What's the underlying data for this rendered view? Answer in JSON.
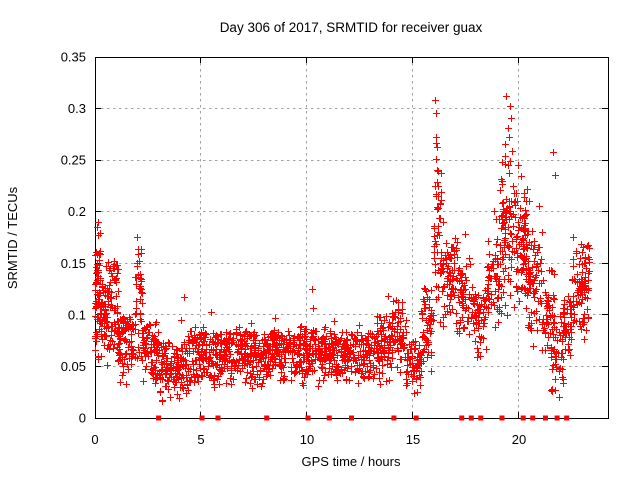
{
  "figure": {
    "background": "#ffffff",
    "border_color": "#000000",
    "text_color": "#000000",
    "grid_color": "#a0a0a0"
  },
  "chart_data": {
    "type": "scatter",
    "title": "Day 306 of 2017, SRMTID for receiver guax",
    "xlabel": "GPS time / hours",
    "ylabel": "SRMTID / TECUs",
    "xlim": [
      0,
      24.2
    ],
    "ylim": [
      0,
      0.35
    ],
    "xtick_values": [
      0,
      5,
      10,
      15,
      20
    ],
    "xtick_labels": [
      "0",
      "5",
      "10",
      "15",
      "20"
    ],
    "ytick_values": [
      0,
      0.05,
      0.1,
      0.15,
      0.2,
      0.25,
      0.3,
      0.35
    ],
    "ytick_labels": [
      "0",
      "0.05",
      "0.1",
      "0.15",
      "0.2",
      "0.25",
      "0.3",
      "0.35"
    ],
    "grid": {
      "on": true,
      "style": "dashed"
    },
    "legend": "none",
    "marker": {
      "shape": "plus",
      "color": "#ff0000",
      "size": 7
    },
    "seed": 1234,
    "cluster_fields": [
      "x0",
      "x1",
      "y0",
      "y1",
      "n",
      "bias"
    ],
    "clusters": [
      [
        0.0,
        0.25,
        0.05,
        0.19,
        55,
        1.0
      ],
      [
        0.25,
        0.6,
        0.04,
        0.15,
        55,
        1.2
      ],
      [
        0.6,
        1.1,
        0.04,
        0.155,
        60,
        1.3
      ],
      [
        1.1,
        1.9,
        0.03,
        0.1,
        80,
        1.3
      ],
      [
        1.9,
        2.25,
        0.035,
        0.17,
        40,
        1.3
      ],
      [
        2.25,
        3.0,
        0.025,
        0.095,
        80,
        1.3
      ],
      [
        3.0,
        4.4,
        0.013,
        0.075,
        130,
        1.3
      ],
      [
        4.4,
        5.3,
        0.025,
        0.09,
        85,
        1.3
      ],
      [
        5.3,
        6.2,
        0.022,
        0.085,
        85,
        1.3
      ],
      [
        6.2,
        7.2,
        0.028,
        0.09,
        95,
        1.3
      ],
      [
        7.2,
        8.2,
        0.025,
        0.085,
        95,
        1.3
      ],
      [
        8.2,
        9.2,
        0.028,
        0.09,
        95,
        1.3
      ],
      [
        9.2,
        10.2,
        0.028,
        0.09,
        95,
        1.3
      ],
      [
        10.2,
        11.2,
        0.025,
        0.09,
        95,
        1.3
      ],
      [
        11.2,
        12.2,
        0.025,
        0.085,
        90,
        1.3
      ],
      [
        12.2,
        13.2,
        0.028,
        0.085,
        90,
        1.3
      ],
      [
        13.2,
        14.0,
        0.03,
        0.1,
        75,
        1.3
      ],
      [
        14.0,
        14.7,
        0.035,
        0.115,
        60,
        1.3
      ],
      [
        14.7,
        15.4,
        0.018,
        0.08,
        60,
        1.2
      ],
      [
        15.4,
        16.0,
        0.04,
        0.135,
        55,
        1.2
      ],
      [
        16.0,
        16.35,
        0.08,
        0.285,
        42,
        1.0
      ],
      [
        16.35,
        17.1,
        0.08,
        0.18,
        70,
        1.2
      ],
      [
        17.1,
        17.7,
        0.065,
        0.16,
        55,
        1.2
      ],
      [
        17.7,
        18.5,
        0.05,
        0.135,
        60,
        1.2
      ],
      [
        18.5,
        19.1,
        0.07,
        0.18,
        55,
        1.1
      ],
      [
        19.1,
        19.8,
        0.09,
        0.27,
        85,
        1.15
      ],
      [
        19.8,
        20.4,
        0.09,
        0.24,
        80,
        1.2
      ],
      [
        20.4,
        21.1,
        0.06,
        0.185,
        70,
        1.25
      ],
      [
        21.1,
        21.7,
        0.04,
        0.145,
        50,
        1.2
      ],
      [
        21.5,
        22.1,
        0.012,
        0.1,
        45,
        1.1
      ],
      [
        22.1,
        22.5,
        0.05,
        0.12,
        40,
        1.2
      ],
      [
        22.5,
        23.35,
        0.06,
        0.175,
        80,
        1.25
      ]
    ],
    "outliers": [
      [
        0.1,
        0.185
      ],
      [
        0.15,
        0.19
      ],
      [
        0.9,
        0.152
      ],
      [
        1.0,
        0.148
      ],
      [
        2.0,
        0.175
      ],
      [
        2.05,
        0.163
      ],
      [
        2.1,
        0.152
      ],
      [
        4.2,
        0.117
      ],
      [
        4.1,
        0.095
      ],
      [
        5.5,
        0.102
      ],
      [
        7.4,
        0.092
      ],
      [
        8.5,
        0.096
      ],
      [
        10.25,
        0.125
      ],
      [
        10.3,
        0.106
      ],
      [
        11.3,
        0.094
      ],
      [
        12.5,
        0.09
      ],
      [
        13.85,
        0.118
      ],
      [
        14.3,
        0.112
      ],
      [
        16.08,
        0.308
      ],
      [
        16.12,
        0.295
      ],
      [
        16.1,
        0.272
      ],
      [
        16.15,
        0.262
      ],
      [
        16.1,
        0.251
      ],
      [
        16.14,
        0.24
      ],
      [
        16.18,
        0.228
      ],
      [
        16.1,
        0.215
      ],
      [
        16.2,
        0.203
      ],
      [
        16.45,
        0.19
      ],
      [
        17.5,
        0.178
      ],
      [
        18.85,
        0.2
      ],
      [
        18.95,
        0.192
      ],
      [
        19.42,
        0.312
      ],
      [
        19.6,
        0.302
      ],
      [
        19.65,
        0.29
      ],
      [
        19.5,
        0.281
      ],
      [
        19.55,
        0.272
      ],
      [
        19.38,
        0.265
      ],
      [
        19.7,
        0.258
      ],
      [
        20.0,
        0.245
      ],
      [
        20.1,
        0.234
      ],
      [
        20.4,
        0.222
      ],
      [
        20.5,
        0.21
      ],
      [
        20.95,
        0.205
      ],
      [
        21.65,
        0.257
      ],
      [
        21.7,
        0.235
      ],
      [
        22.55,
        0.175
      ],
      [
        23.0,
        0.16
      ],
      [
        23.1,
        0.15
      ],
      [
        23.2,
        0.145
      ]
    ],
    "baseline_markers": {
      "shape": "square",
      "color": "#ff0000",
      "y": 0,
      "size": 5,
      "x": [
        3.0,
        5.05,
        5.8,
        8.1,
        10.05,
        11.05,
        12.1,
        14.1,
        15.15,
        17.3,
        17.75,
        18.2,
        19.2,
        20.2,
        20.65,
        21.25,
        21.8,
        22.25
      ]
    }
  }
}
